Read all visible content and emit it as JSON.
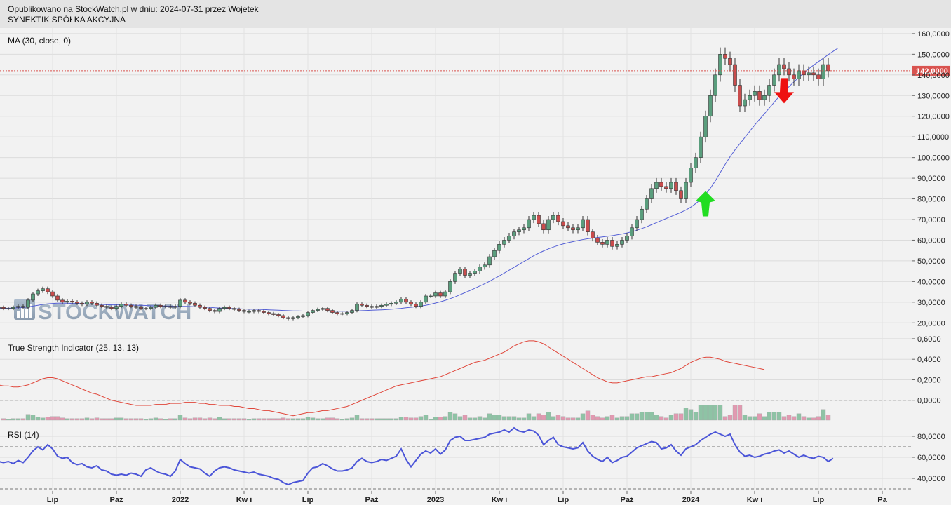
{
  "header": {
    "line1": "Opublikowano na StockWatch.pl w dniu: 2024-07-31 przez Wojetek",
    "line2": "SYNEKTIK SPÓŁKA AKCYJNA"
  },
  "colors": {
    "up": "#5a9e7d",
    "down": "#c94c4c",
    "ma": "#5560d6",
    "tsi": "#e0463a",
    "rsi": "#4b55d8",
    "price_badge": "#d9534f",
    "buy_arrow": "#22dd22",
    "sell_arrow": "#ee1111"
  },
  "watermark": "STOCKWATCH",
  "chart_data": [
    {
      "type": "candlestick",
      "title": "MA (30, close, 0)",
      "ylim": [
        15000,
        162000
      ],
      "y_ticks": [
        "160,0000",
        "150,0000",
        "140,0000",
        "130,0000",
        "120,0000",
        "110,0000",
        "100,0000",
        "90,0000",
        "80,0000",
        "70,0000",
        "60,0000",
        "50,0000",
        "40,0000",
        "30,0000",
        "20,0000"
      ],
      "y_tick_values": [
        160000,
        150000,
        140000,
        130000,
        120000,
        110000,
        100000,
        90000,
        80000,
        70000,
        60000,
        50000,
        40000,
        30000,
        20000
      ],
      "last_price": 142000,
      "last_price_label": "142,0000",
      "x_labels": [
        "Lip",
        "Paź",
        "2022",
        "Kw i",
        "Lip",
        "Paź",
        "2023",
        "Kw i",
        "Lip",
        "Paź",
        "2024",
        "Kw i",
        "Lip",
        "Pa"
      ],
      "x_label_weeks": [
        11,
        24,
        37,
        50,
        63,
        76,
        89,
        102,
        115,
        128,
        141,
        154,
        167,
        180
      ],
      "signals": [
        {
          "type": "buy",
          "week": 144,
          "price": 79000
        },
        {
          "type": "sell",
          "week": 160,
          "price": 131000
        }
      ],
      "series": [
        {
          "name": "Close",
          "values": [
            27500,
            27000,
            27000,
            27500,
            28000,
            27500,
            31000,
            34000,
            35500,
            36500,
            35000,
            33000,
            31000,
            30000,
            30500,
            30000,
            29500,
            29000,
            30000,
            29500,
            28500,
            28000,
            27500,
            27000,
            28000,
            29000,
            28500,
            28000,
            27500,
            27000,
            27000,
            27500,
            28500,
            28000,
            28000,
            27500,
            28000,
            31000,
            30000,
            29500,
            28500,
            27500,
            27000,
            26000,
            25500,
            27000,
            27500,
            27000,
            26500,
            26000,
            25500,
            25500,
            26000,
            25500,
            25000,
            24500,
            24000,
            23500,
            22500,
            22000,
            22500,
            23000,
            23500,
            25000,
            26000,
            26500,
            27000,
            26000,
            25000,
            24500,
            24500,
            25000,
            26000,
            29000,
            28500,
            28000,
            27500,
            28000,
            28500,
            29000,
            29500,
            30000,
            31500,
            30000,
            29000,
            28000,
            30000,
            33000,
            33000,
            34500,
            33000,
            35000,
            40000,
            44000,
            46000,
            43000,
            44000,
            45000,
            47000,
            48000,
            52000,
            55000,
            58000,
            60000,
            62000,
            64000,
            65000,
            66000,
            70000,
            72000,
            68000,
            65000,
            70000,
            72000,
            69000,
            67000,
            66000,
            65000,
            66000,
            70000,
            64000,
            61000,
            59000,
            58000,
            60000,
            57000,
            58000,
            60000,
            62000,
            66000,
            70000,
            75000,
            80000,
            85000,
            88000,
            86000,
            85000,
            88000,
            84000,
            80000,
            88000,
            95000,
            100000,
            110000,
            120000,
            130000,
            140000,
            150000,
            148000,
            145000,
            135000,
            125000,
            128000,
            130000,
            132000,
            128000,
            130000,
            135000,
            140000,
            145000,
            143000,
            140000,
            138000,
            142000,
            140000,
            141000,
            140000,
            138000,
            145000,
            142000
          ]
        },
        {
          "name": "MA (30, close, 0)",
          "values": [
            27000,
            27000,
            27100,
            27200,
            27300,
            27400,
            27700,
            28100,
            28500,
            28900,
            29200,
            29400,
            29500,
            29500,
            29500,
            29400,
            29400,
            29300,
            29200,
            29100,
            29000,
            28900,
            28800,
            28700,
            28700,
            28700,
            28600,
            28600,
            28500,
            28500,
            28400,
            28300,
            28200,
            28200,
            28100,
            28100,
            28000,
            28000,
            28000,
            27900,
            27800,
            27700,
            27600,
            27500,
            27300,
            27200,
            27100,
            27000,
            26900,
            26800,
            26700,
            26600,
            26600,
            26500,
            26400,
            26300,
            26200,
            26100,
            26000,
            25900,
            25800,
            25800,
            25700,
            25700,
            25700,
            25700,
            25700,
            25700,
            25600,
            25600,
            25600,
            25600,
            25700,
            25800,
            25900,
            26000,
            26100,
            26200,
            26300,
            26400,
            26600,
            26800,
            27000,
            27300,
            27500,
            27800,
            28100,
            28500,
            29000,
            29600,
            30200,
            30900,
            31700,
            32600,
            33600,
            34600,
            35600,
            36700,
            37800,
            38900,
            40100,
            41400,
            42700,
            44100,
            45500,
            46900,
            48300,
            49700,
            51100,
            52500,
            53700,
            54800,
            55800,
            56700,
            57500,
            58200,
            58800,
            59300,
            59800,
            60300,
            60700,
            61000,
            61300,
            61600,
            61900,
            62200,
            62600,
            63000,
            63500,
            64100,
            64800,
            65600,
            66500,
            67500,
            68500,
            69500,
            70500,
            71500,
            72500,
            73500,
            74600,
            76000,
            77700,
            79700,
            82200,
            85200,
            88700,
            92700,
            96700,
            100400,
            103700,
            106700,
            109700,
            112700,
            115700,
            118500,
            121200,
            124000,
            126800,
            129600,
            132000,
            134300,
            136600,
            138800,
            140900,
            142900,
            144700,
            146400,
            148100,
            149800,
            151400,
            153000
          ]
        }
      ]
    },
    {
      "type": "line",
      "title": "True Strength Indicator (25, 13, 13)",
      "ylim": [
        -0.2,
        0.62
      ],
      "y_ticks": [
        "0,6000",
        "0,4000",
        "0,2000",
        "0,0000"
      ],
      "y_tick_values": [
        0.6,
        0.4,
        0.2,
        0.0
      ],
      "series": [
        {
          "name": "True Strength Indicator (25, 13, 13)",
          "values": [
            0.15,
            0.14,
            0.14,
            0.13,
            0.13,
            0.14,
            0.15,
            0.17,
            0.19,
            0.21,
            0.22,
            0.22,
            0.21,
            0.19,
            0.17,
            0.15,
            0.13,
            0.11,
            0.09,
            0.07,
            0.06,
            0.04,
            0.02,
            0.0,
            -0.01,
            -0.02,
            -0.03,
            -0.04,
            -0.05,
            -0.05,
            -0.05,
            -0.05,
            -0.04,
            -0.04,
            -0.04,
            -0.03,
            -0.03,
            -0.03,
            -0.02,
            -0.02,
            -0.02,
            -0.03,
            -0.03,
            -0.04,
            -0.04,
            -0.05,
            -0.05,
            -0.05,
            -0.06,
            -0.06,
            -0.07,
            -0.08,
            -0.08,
            -0.09,
            -0.1,
            -0.1,
            -0.11,
            -0.12,
            -0.13,
            -0.14,
            -0.15,
            -0.14,
            -0.13,
            -0.12,
            -0.12,
            -0.11,
            -0.1,
            -0.1,
            -0.09,
            -0.08,
            -0.07,
            -0.06,
            -0.04,
            -0.02,
            0.0,
            0.02,
            0.04,
            0.06,
            0.08,
            0.1,
            0.12,
            0.14,
            0.15,
            0.16,
            0.17,
            0.18,
            0.19,
            0.2,
            0.21,
            0.22,
            0.23,
            0.25,
            0.27,
            0.29,
            0.31,
            0.33,
            0.35,
            0.37,
            0.38,
            0.39,
            0.41,
            0.43,
            0.45,
            0.47,
            0.5,
            0.53,
            0.55,
            0.57,
            0.58,
            0.58,
            0.57,
            0.55,
            0.52,
            0.49,
            0.46,
            0.43,
            0.4,
            0.37,
            0.34,
            0.31,
            0.28,
            0.25,
            0.22,
            0.2,
            0.18,
            0.17,
            0.17,
            0.18,
            0.19,
            0.2,
            0.21,
            0.22,
            0.23,
            0.23,
            0.24,
            0.25,
            0.26,
            0.27,
            0.29,
            0.31,
            0.34,
            0.37,
            0.39,
            0.41,
            0.42,
            0.42,
            0.41,
            0.4,
            0.38,
            0.37,
            0.36,
            0.35,
            0.34,
            0.33,
            0.32,
            0.31,
            0.3
          ]
        }
      ]
    },
    {
      "type": "line",
      "title": "RSI (14)",
      "ylim": [
        28,
        92
      ],
      "y_ticks": [
        "80,0000",
        "60,0000",
        "40,0000"
      ],
      "y_tick_values": [
        80,
        60,
        40
      ],
      "series": [
        {
          "name": "RSI (14)",
          "values": [
            56,
            55,
            56,
            54,
            57,
            55,
            60,
            66,
            70,
            67,
            72,
            68,
            61,
            59,
            60,
            55,
            53,
            54,
            51,
            50,
            52,
            48,
            47,
            44,
            43,
            44,
            43,
            45,
            44,
            42,
            48,
            50,
            47,
            45,
            44,
            42,
            47,
            58,
            54,
            51,
            50,
            49,
            45,
            42,
            47,
            50,
            51,
            50,
            48,
            47,
            46,
            45,
            46,
            44,
            43,
            42,
            40,
            39,
            36,
            34,
            36,
            37,
            38,
            45,
            50,
            51,
            54,
            52,
            49,
            47,
            47,
            48,
            50,
            56,
            59,
            56,
            55,
            56,
            58,
            57,
            59,
            61,
            68,
            58,
            51,
            57,
            63,
            66,
            64,
            68,
            63,
            67,
            76,
            79,
            80,
            76,
            76,
            77,
            78,
            79,
            82,
            83,
            84,
            86,
            84,
            88,
            85,
            84,
            86,
            85,
            81,
            72,
            76,
            79,
            72,
            70,
            69,
            68,
            69,
            74,
            66,
            61,
            58,
            56,
            60,
            55,
            57,
            60,
            61,
            65,
            69,
            71,
            73,
            75,
            74,
            68,
            69,
            72,
            66,
            62,
            68,
            70,
            72,
            76,
            79,
            82,
            84,
            82,
            80,
            82,
            72,
            65,
            61,
            62,
            60,
            61,
            63,
            64,
            66,
            67,
            64,
            66,
            63,
            60,
            62,
            60,
            59,
            61,
            60,
            56,
            59
          ]
        }
      ]
    }
  ]
}
